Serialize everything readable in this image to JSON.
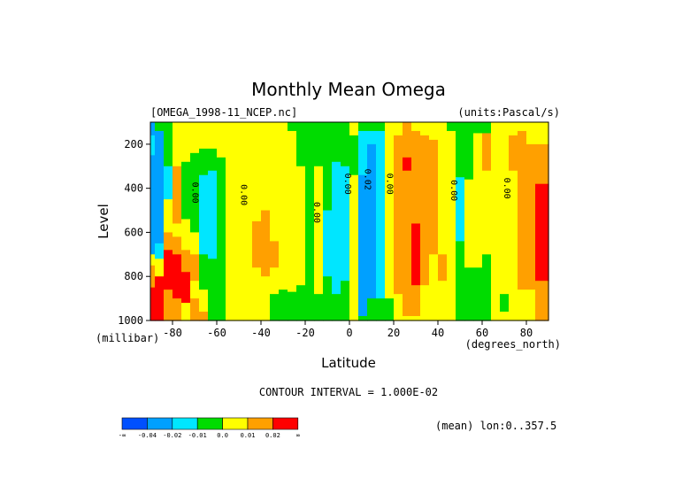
{
  "chart_data": {
    "type": "heatmap",
    "title": "Monthly Mean Omega",
    "dataset": "[OMEGA_1998-11_NCEP.nc]",
    "units": "(units:Pascal/s)",
    "xlabel": "Latitude",
    "ylabel": "Level",
    "x_unit": "(degrees_north)",
    "y_unit": "(millibar)",
    "xlim": [
      -90,
      90
    ],
    "ylim": [
      1000,
      100
    ],
    "x_ticks": [
      -80,
      -60,
      -40,
      -20,
      0,
      20,
      40,
      60,
      80
    ],
    "x_tick_labels": [
      "-80",
      "-60",
      "-40",
      "-20",
      "0",
      "20",
      "40",
      "60",
      "80"
    ],
    "y_ticks": [
      200,
      400,
      600,
      800,
      1000
    ],
    "y_tick_labels": [
      "200",
      "400",
      "600",
      "800",
      "1000"
    ],
    "contour_interval": "CONTOUR INTERVAL = 1.000E-02",
    "mean_note": "(mean) lon:0..357.5",
    "contour_labels": [
      {
        "text": "0.00",
        "lat": -71,
        "lev": 420
      },
      {
        "text": "0.00",
        "lat": -49,
        "lev": 430
      },
      {
        "text": "0.00",
        "lat": -16,
        "lev": 510
      },
      {
        "text": "0.00",
        "lat": -2,
        "lev": 380
      },
      {
        "text": "0.02",
        "lat": 7,
        "lev": 360
      },
      {
        "text": "0.00",
        "lat": 17,
        "lev": 380
      },
      {
        "text": "0.00",
        "lat": 46,
        "lev": 410
      },
      {
        "text": "0.00",
        "lat": 70,
        "lev": 400
      }
    ],
    "colorbar": {
      "colors": [
        "#0050ff",
        "#00a0ff",
        "#00e6ff",
        "#00dc00",
        "#ffff00",
        "#ffa000",
        "#ff0000"
      ],
      "labels": [
        "-∞",
        "-0.04",
        "-0.02",
        "-0.01",
        "0.0",
        "0.01",
        "0.02",
        "∞"
      ]
    },
    "columns": [
      {
        "lat": -90,
        "segs": [
          [
            100,
            160,
            1
          ],
          [
            160,
            250,
            2
          ],
          [
            250,
            700,
            1
          ],
          [
            700,
            750,
            4
          ],
          [
            750,
            850,
            5
          ],
          [
            850,
            1000,
            6
          ]
        ]
      },
      {
        "lat": -86,
        "segs": [
          [
            100,
            140,
            3
          ],
          [
            140,
            250,
            1
          ],
          [
            250,
            650,
            1
          ],
          [
            650,
            720,
            2
          ],
          [
            720,
            800,
            4
          ],
          [
            800,
            1000,
            6
          ]
        ]
      },
      {
        "lat": -82,
        "segs": [
          [
            100,
            300,
            3
          ],
          [
            300,
            450,
            2
          ],
          [
            450,
            600,
            4
          ],
          [
            600,
            680,
            5
          ],
          [
            680,
            860,
            6
          ],
          [
            860,
            1000,
            5
          ]
        ]
      },
      {
        "lat": -78,
        "segs": [
          [
            100,
            300,
            4
          ],
          [
            300,
            560,
            5
          ],
          [
            560,
            620,
            4
          ],
          [
            620,
            700,
            5
          ],
          [
            700,
            900,
            6
          ],
          [
            900,
            1000,
            5
          ]
        ]
      },
      {
        "lat": -74,
        "segs": [
          [
            100,
            280,
            4
          ],
          [
            280,
            540,
            3
          ],
          [
            540,
            680,
            4
          ],
          [
            680,
            780,
            5
          ],
          [
            780,
            920,
            6
          ],
          [
            920,
            1000,
            4
          ]
        ]
      },
      {
        "lat": -70,
        "segs": [
          [
            100,
            240,
            4
          ],
          [
            240,
            600,
            3
          ],
          [
            600,
            700,
            4
          ],
          [
            700,
            820,
            5
          ],
          [
            820,
            900,
            4
          ],
          [
            900,
            1000,
            5
          ]
        ]
      },
      {
        "lat": -66,
        "segs": [
          [
            100,
            220,
            4
          ],
          [
            220,
            340,
            3
          ],
          [
            340,
            700,
            2
          ],
          [
            700,
            860,
            3
          ],
          [
            860,
            960,
            4
          ],
          [
            960,
            1000,
            5
          ]
        ]
      },
      {
        "lat": -62,
        "segs": [
          [
            100,
            220,
            4
          ],
          [
            220,
            320,
            3
          ],
          [
            320,
            720,
            2
          ],
          [
            720,
            860,
            3
          ],
          [
            860,
            1000,
            3
          ]
        ]
      },
      {
        "lat": -58,
        "segs": [
          [
            100,
            260,
            4
          ],
          [
            260,
            420,
            3
          ],
          [
            420,
            1000,
            3
          ]
        ]
      },
      {
        "lat": -54,
        "segs": [
          [
            100,
            1000,
            4
          ]
        ]
      },
      {
        "lat": -50,
        "segs": [
          [
            100,
            1000,
            4
          ]
        ]
      },
      {
        "lat": -46,
        "segs": [
          [
            100,
            1000,
            4
          ]
        ]
      },
      {
        "lat": -42,
        "segs": [
          [
            100,
            550,
            4
          ],
          [
            550,
            760,
            5
          ],
          [
            760,
            1000,
            4
          ]
        ]
      },
      {
        "lat": -38,
        "segs": [
          [
            100,
            500,
            4
          ],
          [
            500,
            800,
            5
          ],
          [
            800,
            1000,
            4
          ]
        ]
      },
      {
        "lat": -34,
        "segs": [
          [
            100,
            640,
            4
          ],
          [
            640,
            760,
            5
          ],
          [
            760,
            880,
            4
          ],
          [
            880,
            1000,
            3
          ]
        ]
      },
      {
        "lat": -30,
        "segs": [
          [
            100,
            860,
            4
          ],
          [
            860,
            1000,
            3
          ]
        ]
      },
      {
        "lat": -26,
        "segs": [
          [
            100,
            140,
            3
          ],
          [
            140,
            870,
            4
          ],
          [
            870,
            1000,
            3
          ]
        ]
      },
      {
        "lat": -22,
        "segs": [
          [
            100,
            300,
            3
          ],
          [
            300,
            840,
            4
          ],
          [
            840,
            1000,
            3
          ]
        ]
      },
      {
        "lat": -18,
        "segs": [
          [
            100,
            300,
            3
          ],
          [
            300,
            1000,
            3
          ]
        ]
      },
      {
        "lat": -14,
        "segs": [
          [
            100,
            300,
            3
          ],
          [
            300,
            880,
            4
          ],
          [
            880,
            1000,
            3
          ]
        ]
      },
      {
        "lat": -10,
        "segs": [
          [
            100,
            500,
            3
          ],
          [
            500,
            800,
            2
          ],
          [
            800,
            1000,
            3
          ]
        ]
      },
      {
        "lat": -6,
        "segs": [
          [
            100,
            280,
            3
          ],
          [
            280,
            880,
            2
          ],
          [
            880,
            1000,
            3
          ]
        ]
      },
      {
        "lat": -2,
        "segs": [
          [
            100,
            300,
            3
          ],
          [
            300,
            820,
            2
          ],
          [
            820,
            1000,
            3
          ]
        ]
      },
      {
        "lat": 2,
        "segs": [
          [
            100,
            160,
            4
          ],
          [
            160,
            340,
            3
          ],
          [
            340,
            1000,
            4
          ]
        ]
      },
      {
        "lat": 6,
        "segs": [
          [
            100,
            140,
            3
          ],
          [
            140,
            340,
            2
          ],
          [
            340,
            700,
            1
          ],
          [
            700,
            980,
            1
          ],
          [
            980,
            1000,
            3
          ]
        ]
      },
      {
        "lat": 10,
        "segs": [
          [
            100,
            140,
            3
          ],
          [
            140,
            200,
            2
          ],
          [
            200,
            900,
            1
          ],
          [
            900,
            1000,
            3
          ]
        ]
      },
      {
        "lat": 14,
        "segs": [
          [
            100,
            140,
            3
          ],
          [
            140,
            900,
            2
          ],
          [
            900,
            1000,
            3
          ]
        ]
      },
      {
        "lat": 18,
        "segs": [
          [
            100,
            160,
            4
          ],
          [
            160,
            900,
            4
          ],
          [
            900,
            1000,
            3
          ]
        ]
      },
      {
        "lat": 22,
        "segs": [
          [
            100,
            160,
            4
          ],
          [
            160,
            300,
            5
          ],
          [
            300,
            880,
            5
          ],
          [
            880,
            1000,
            4
          ]
        ]
      },
      {
        "lat": 26,
        "segs": [
          [
            100,
            260,
            5
          ],
          [
            260,
            320,
            6
          ],
          [
            320,
            980,
            5
          ],
          [
            980,
            1000,
            4
          ]
        ]
      },
      {
        "lat": 30,
        "segs": [
          [
            100,
            140,
            4
          ],
          [
            140,
            560,
            5
          ],
          [
            560,
            840,
            6
          ],
          [
            840,
            980,
            5
          ],
          [
            980,
            1000,
            4
          ]
        ]
      },
      {
        "lat": 34,
        "segs": [
          [
            100,
            160,
            4
          ],
          [
            160,
            620,
            5
          ],
          [
            620,
            840,
            5
          ],
          [
            840,
            1000,
            4
          ]
        ]
      },
      {
        "lat": 38,
        "segs": [
          [
            100,
            180,
            4
          ],
          [
            180,
            700,
            5
          ],
          [
            700,
            1000,
            4
          ]
        ]
      },
      {
        "lat": 42,
        "segs": [
          [
            100,
            300,
            4
          ],
          [
            300,
            700,
            4
          ],
          [
            700,
            820,
            5
          ],
          [
            820,
            1000,
            4
          ]
        ]
      },
      {
        "lat": 46,
        "segs": [
          [
            100,
            140,
            3
          ],
          [
            140,
            1000,
            4
          ]
        ]
      },
      {
        "lat": 50,
        "segs": [
          [
            100,
            160,
            3
          ],
          [
            160,
            350,
            3
          ],
          [
            350,
            640,
            2
          ],
          [
            640,
            1000,
            3
          ]
        ]
      },
      {
        "lat": 54,
        "segs": [
          [
            100,
            140,
            3
          ],
          [
            140,
            360,
            3
          ],
          [
            360,
            760,
            4
          ],
          [
            760,
            1000,
            3
          ]
        ]
      },
      {
        "lat": 58,
        "segs": [
          [
            100,
            150,
            3
          ],
          [
            150,
            500,
            4
          ],
          [
            500,
            760,
            4
          ],
          [
            760,
            1000,
            3
          ]
        ]
      },
      {
        "lat": 62,
        "segs": [
          [
            100,
            150,
            3
          ],
          [
            150,
            320,
            5
          ],
          [
            320,
            700,
            4
          ],
          [
            700,
            1000,
            3
          ]
        ]
      },
      {
        "lat": 66,
        "segs": [
          [
            100,
            1000,
            4
          ]
        ]
      },
      {
        "lat": 70,
        "segs": [
          [
            100,
            880,
            4
          ],
          [
            880,
            960,
            3
          ],
          [
            960,
            1000,
            4
          ]
        ]
      },
      {
        "lat": 74,
        "segs": [
          [
            100,
            160,
            4
          ],
          [
            160,
            320,
            5
          ],
          [
            320,
            1000,
            4
          ]
        ]
      },
      {
        "lat": 78,
        "segs": [
          [
            100,
            140,
            4
          ],
          [
            140,
            600,
            5
          ],
          [
            600,
            860,
            5
          ],
          [
            860,
            1000,
            4
          ]
        ]
      },
      {
        "lat": 82,
        "segs": [
          [
            100,
            200,
            4
          ],
          [
            200,
            860,
            5
          ],
          [
            860,
            1000,
            4
          ]
        ]
      },
      {
        "lat": 86,
        "segs": [
          [
            100,
            200,
            4
          ],
          [
            200,
            380,
            5
          ],
          [
            380,
            820,
            6
          ],
          [
            820,
            1000,
            5
          ]
        ]
      },
      {
        "lat": 90,
        "segs": [
          [
            100,
            200,
            4
          ],
          [
            200,
            380,
            5
          ],
          [
            380,
            820,
            6
          ],
          [
            820,
            1000,
            5
          ]
        ]
      }
    ]
  }
}
